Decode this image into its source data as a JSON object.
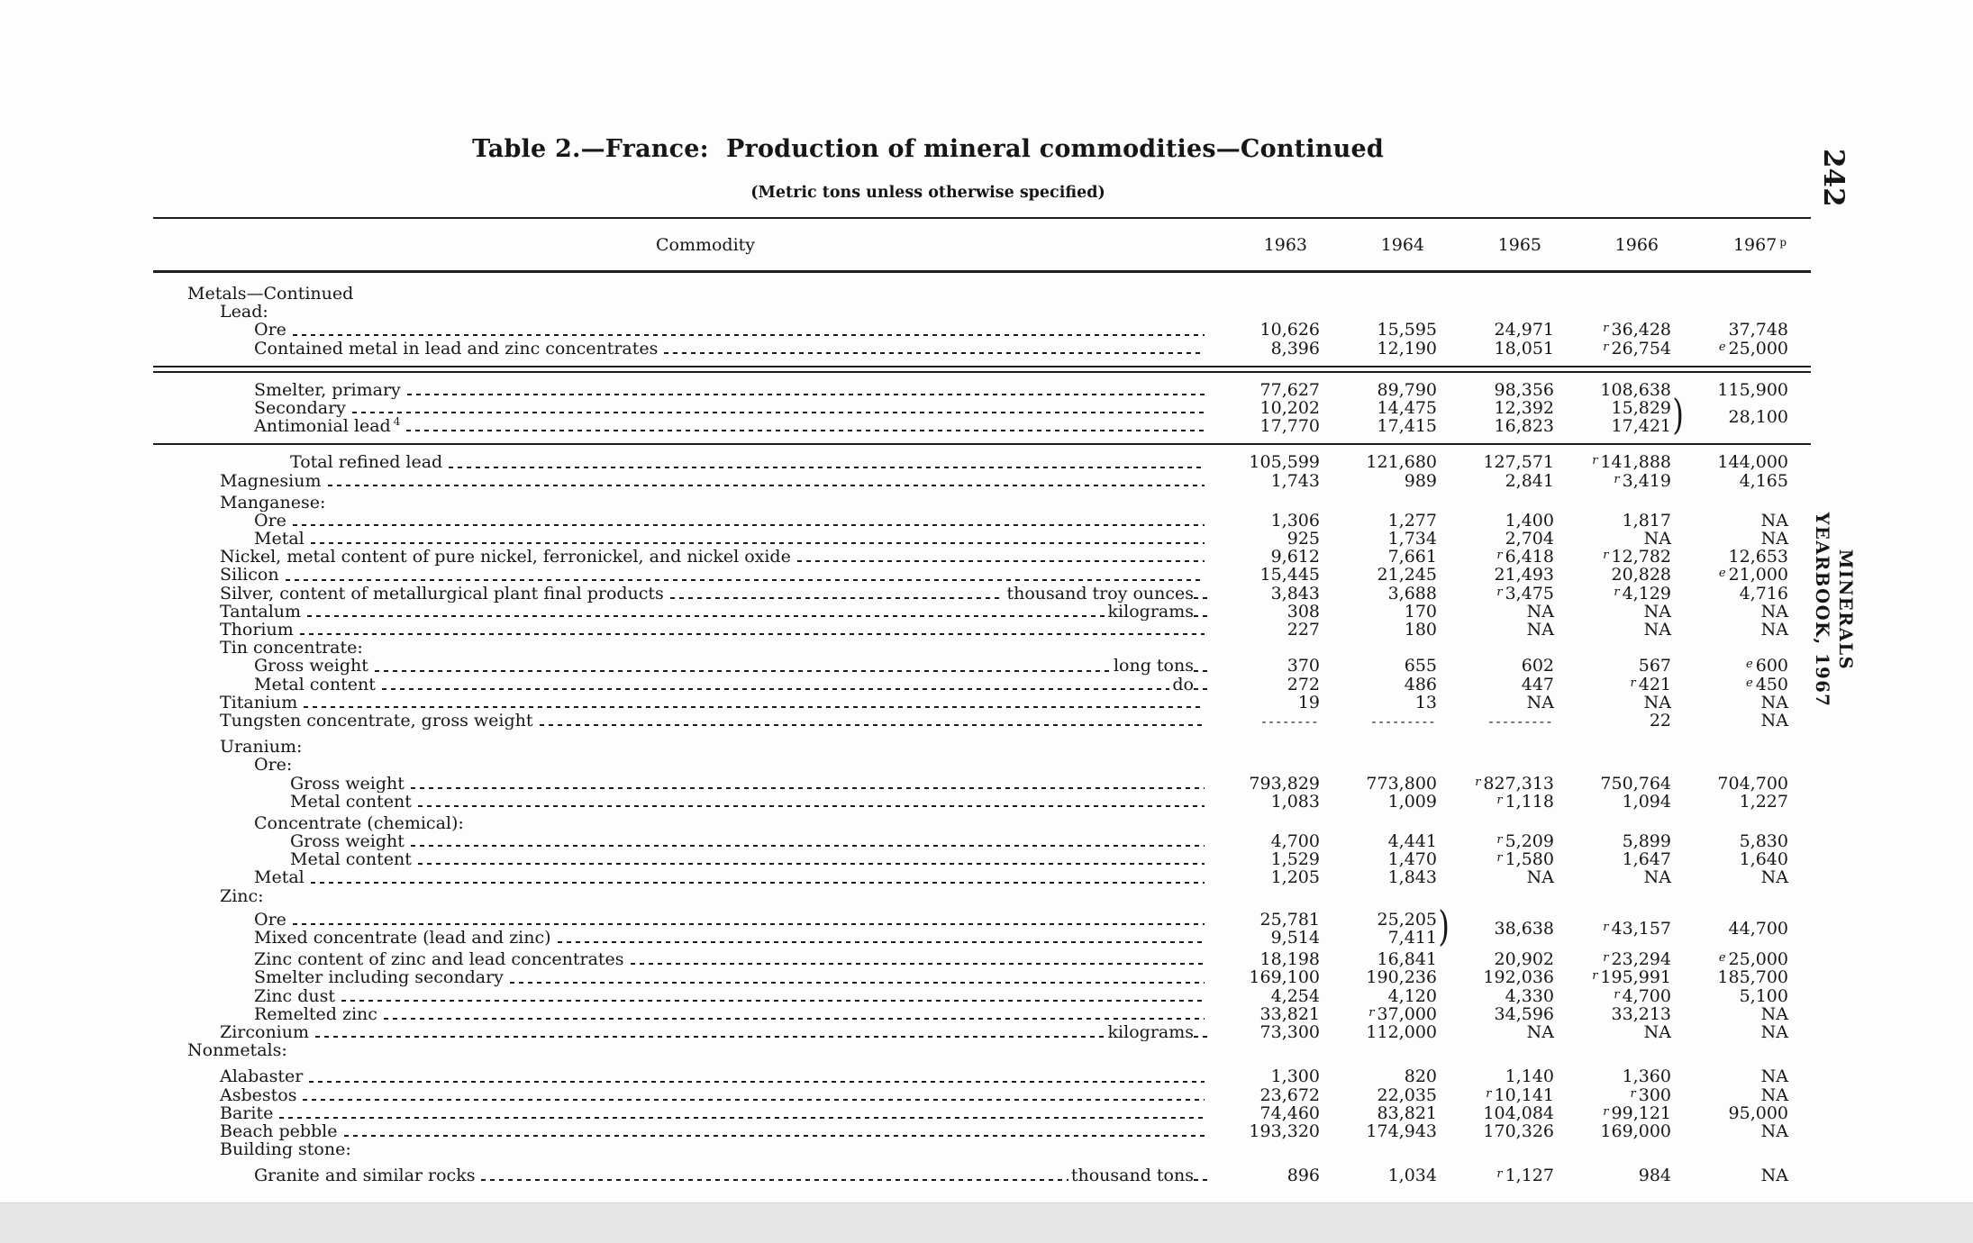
{
  "colors": {
    "ink": "#161616",
    "paper": "#fdfdfc",
    "scan_band": "#e6e6e4"
  },
  "page": {
    "number": "242",
    "running_head": "MINERALS YEARBOOK, 1967"
  },
  "title": "Table 2.—France:  Production of mineral commodities—Continued",
  "subtitle": "(Metric tons unless otherwise specified)",
  "table": {
    "commodity_header": "Commodity",
    "columns": [
      {
        "label": "1963"
      },
      {
        "label": "1964"
      },
      {
        "label": "1965"
      },
      {
        "label": "1966"
      },
      {
        "label": "1967",
        "sup": "p"
      }
    ],
    "rows": [
      {
        "label": "Metals—Continued",
        "indent": 0,
        "heading": true
      },
      {
        "label": "Lead:",
        "indent": 1,
        "heading": true
      },
      {
        "label": "Ore",
        "indent": 2,
        "cells": [
          {
            "v": "10,626"
          },
          {
            "v": "15,595"
          },
          {
            "v": "24,971"
          },
          {
            "s": "r",
            "v": "36,428"
          },
          {
            "v": "37,748"
          }
        ]
      },
      {
        "label": "Contained metal in lead and zinc concentrates",
        "indent": 2,
        "cells": [
          {
            "v": "8,396"
          },
          {
            "v": "12,190"
          },
          {
            "v": "18,051"
          },
          {
            "s": "r",
            "v": "26,754"
          },
          {
            "s": "e",
            "v": "25,000"
          }
        ]
      },
      {
        "type": "dblrule"
      },
      {
        "label": "Smelter, primary",
        "indent": 2,
        "cells": [
          {
            "v": "77,627"
          },
          {
            "v": "89,790"
          },
          {
            "v": "98,356"
          },
          {
            "v": "108,638"
          },
          {
            "v": "115,900"
          }
        ]
      },
      {
        "label": "Secondary",
        "indent": 2,
        "cells": [
          {
            "v": "10,202"
          },
          {
            "v": "14,475"
          },
          {
            "v": "12,392"
          },
          {
            "v": "15,829",
            "brace": true
          },
          {
            "v": "28,100",
            "shift": true
          }
        ]
      },
      {
        "label": "Antimonial lead",
        "foot": "4",
        "indent": 2,
        "cells": [
          {
            "v": "17,770"
          },
          {
            "v": "17,415"
          },
          {
            "v": "16,823"
          },
          {
            "v": "17,421"
          },
          null
        ]
      },
      {
        "type": "rule"
      },
      {
        "label": "Total refined lead",
        "indent": 3,
        "cells": [
          {
            "v": "105,599"
          },
          {
            "v": "121,680"
          },
          {
            "v": "127,571"
          },
          {
            "s": "r",
            "v": "141,888"
          },
          {
            "v": "144,000"
          }
        ]
      },
      {
        "label": "Magnesium",
        "indent": 1,
        "cells": [
          {
            "v": "1,743"
          },
          {
            "v": "989"
          },
          {
            "v": "2,841"
          },
          {
            "s": "r",
            "v": "3,419"
          },
          {
            "v": "4,165"
          }
        ]
      },
      {
        "label": "Manganese:",
        "indent": 1,
        "heading": true,
        "gapBefore": 4
      },
      {
        "label": "Ore",
        "indent": 2,
        "cells": [
          {
            "v": "1,306"
          },
          {
            "v": "1,277"
          },
          {
            "v": "1,400"
          },
          {
            "v": "1,817"
          },
          {
            "v": "NA"
          }
        ]
      },
      {
        "label": "Metal",
        "indent": 2,
        "cells": [
          {
            "v": "925"
          },
          {
            "v": "1,734"
          },
          {
            "v": "2,704"
          },
          {
            "v": "NA"
          },
          {
            "v": "NA"
          }
        ]
      },
      {
        "label": "Nickel, metal content of pure nickel, ferronickel, and nickel oxide",
        "indent": 1,
        "cells": [
          {
            "v": "9,612"
          },
          {
            "v": "7,661"
          },
          {
            "s": "r",
            "v": "6,418"
          },
          {
            "s": "r",
            "v": "12,782"
          },
          {
            "v": "12,653"
          }
        ]
      },
      {
        "label": "Silicon",
        "indent": 1,
        "cells": [
          {
            "v": "15,445"
          },
          {
            "v": "21,245"
          },
          {
            "v": "21,493"
          },
          {
            "v": "20,828"
          },
          {
            "s": "e",
            "v": "21,000"
          }
        ]
      },
      {
        "label": "Silver, content of metallurgical plant final products",
        "unit": "thousand troy ounces",
        "indent": 1,
        "cells": [
          {
            "v": "3,843"
          },
          {
            "v": "3,688"
          },
          {
            "s": "r",
            "v": "3,475"
          },
          {
            "s": "r",
            "v": "4,129"
          },
          {
            "v": "4,716"
          }
        ]
      },
      {
        "label": "Tantalum",
        "unit": "kilograms",
        "indent": 1,
        "cells": [
          {
            "v": "308"
          },
          {
            "v": "170"
          },
          {
            "v": "NA"
          },
          {
            "v": "NA"
          },
          {
            "v": "NA"
          }
        ]
      },
      {
        "label": "Thorium",
        "indent": 1,
        "cells": [
          {
            "v": "227"
          },
          {
            "v": "180"
          },
          {
            "v": "NA"
          },
          {
            "v": "NA"
          },
          {
            "v": "NA"
          }
        ]
      },
      {
        "label": "Tin concentrate:",
        "indent": 1,
        "heading": true
      },
      {
        "label": "Gross weight",
        "unit": "long tons",
        "indent": 2,
        "cells": [
          {
            "v": "370"
          },
          {
            "v": "655"
          },
          {
            "v": "602"
          },
          {
            "v": "567"
          },
          {
            "s": "e",
            "v": "600"
          }
        ]
      },
      {
        "label": "Metal content",
        "unit": "do",
        "indent": 2,
        "cells": [
          {
            "v": "272"
          },
          {
            "v": "486"
          },
          {
            "v": "447"
          },
          {
            "s": "r",
            "v": "421"
          },
          {
            "s": "e",
            "v": "450"
          }
        ]
      },
      {
        "label": "Titanium",
        "indent": 1,
        "cells": [
          {
            "v": "19"
          },
          {
            "v": "13"
          },
          {
            "v": "NA"
          },
          {
            "v": "NA"
          },
          {
            "v": "NA"
          }
        ]
      },
      {
        "label": "Tungsten concentrate, gross weight",
        "indent": 1,
        "cells": [
          {
            "v": "--------",
            "dash": true
          },
          {
            "v": "---------",
            "dash": true
          },
          {
            "v": "---------",
            "dash": true
          },
          {
            "v": "22"
          },
          {
            "v": "NA"
          }
        ]
      },
      {
        "label": "Uranium:",
        "indent": 1,
        "heading": true,
        "gapBefore": 9
      },
      {
        "label": "Ore:",
        "indent": 2,
        "heading": true
      },
      {
        "label": "Gross weight",
        "indent": 3,
        "cells": [
          {
            "v": "793,829"
          },
          {
            "v": "773,800"
          },
          {
            "s": "r",
            "v": "827,313"
          },
          {
            "v": "750,764"
          },
          {
            "v": "704,700"
          }
        ]
      },
      {
        "label": "Metal content",
        "indent": 3,
        "cells": [
          {
            "v": "1,083"
          },
          {
            "v": "1,009"
          },
          {
            "s": "r",
            "v": "1,118"
          },
          {
            "v": "1,094"
          },
          {
            "v": "1,227"
          }
        ]
      },
      {
        "label": "Concentrate (chemical):",
        "indent": 2,
        "heading": true,
        "gapBefore": 4
      },
      {
        "label": "Gross weight",
        "indent": 3,
        "cells": [
          {
            "v": "4,700"
          },
          {
            "v": "4,441"
          },
          {
            "s": "r",
            "v": "5,209"
          },
          {
            "v": "5,899"
          },
          {
            "v": "5,830"
          }
        ]
      },
      {
        "label": "Metal content",
        "indent": 3,
        "cells": [
          {
            "v": "1,529"
          },
          {
            "v": "1,470"
          },
          {
            "s": "r",
            "v": "1,580"
          },
          {
            "v": "1,647"
          },
          {
            "v": "1,640"
          }
        ]
      },
      {
        "label": "Metal",
        "indent": 2,
        "cells": [
          {
            "v": "1,205"
          },
          {
            "v": "1,843"
          },
          {
            "v": "NA"
          },
          {
            "v": "NA"
          },
          {
            "v": "NA"
          }
        ]
      },
      {
        "label": "Zinc:",
        "indent": 1,
        "heading": true
      },
      {
        "label": "Ore",
        "indent": 2,
        "gapBefore": 6,
        "cells": [
          {
            "v": "25,781"
          },
          {
            "v": "25,205",
            "brace": true
          },
          {
            "v": "38,638",
            "shift": true
          },
          {
            "s": "r",
            "v": "43,157",
            "shift": true
          },
          {
            "v": "44,700",
            "shift": true
          }
        ]
      },
      {
        "label": "Mixed concentrate (lead and zinc)",
        "indent": 2,
        "cells": [
          {
            "v": "9,514"
          },
          {
            "v": "7,411"
          },
          null,
          null,
          null
        ]
      },
      {
        "label": "Zinc content of zinc and lead concentrates",
        "indent": 2,
        "gapBefore": 4,
        "cells": [
          {
            "v": "18,198"
          },
          {
            "v": "16,841"
          },
          {
            "v": "20,902"
          },
          {
            "s": "r",
            "v": "23,294"
          },
          {
            "s": "e",
            "v": "25,000"
          }
        ]
      },
      {
        "label": "Smelter including secondary",
        "indent": 2,
        "cells": [
          {
            "v": "169,100"
          },
          {
            "v": "190,236"
          },
          {
            "v": "192,036"
          },
          {
            "s": "r",
            "v": "195,991"
          },
          {
            "v": "185,700"
          }
        ]
      },
      {
        "label": "Zinc dust",
        "indent": 2,
        "cells": [
          {
            "v": "4,254"
          },
          {
            "v": "4,120"
          },
          {
            "v": "4,330"
          },
          {
            "s": "r",
            "v": "4,700"
          },
          {
            "v": "5,100"
          }
        ]
      },
      {
        "label": "Remelted zinc",
        "indent": 2,
        "cells": [
          {
            "v": "33,821"
          },
          {
            "s": "r",
            "v": "37,000"
          },
          {
            "v": "34,596"
          },
          {
            "v": "33,213"
          },
          {
            "v": "NA"
          }
        ]
      },
      {
        "label": "Zirconium",
        "unit": "kilograms",
        "indent": 1,
        "cells": [
          {
            "v": "73,300"
          },
          {
            "v": "112,000"
          },
          {
            "v": "NA"
          },
          {
            "v": "NA"
          },
          {
            "v": "NA"
          }
        ]
      },
      {
        "label": "Nonmetals:",
        "indent": 0,
        "heading": true
      },
      {
        "label": "Alabaster",
        "indent": 1,
        "gapBefore": 9,
        "cells": [
          {
            "v": "1,300"
          },
          {
            "v": "820"
          },
          {
            "v": "1,140"
          },
          {
            "v": "1,360"
          },
          {
            "v": "NA"
          }
        ]
      },
      {
        "label": "Asbestos",
        "indent": 1,
        "cells": [
          {
            "v": "23,672"
          },
          {
            "v": "22,035"
          },
          {
            "s": "r",
            "v": "10,141"
          },
          {
            "s": "r",
            "v": "300"
          },
          {
            "v": "NA"
          }
        ]
      },
      {
        "label": "Barite",
        "indent": 1,
        "cells": [
          {
            "v": "74,460"
          },
          {
            "v": "83,821"
          },
          {
            "v": "104,084"
          },
          {
            "s": "r",
            "v": "99,121"
          },
          {
            "v": "95,000"
          }
        ]
      },
      {
        "label": "Beach pebble",
        "indent": 1,
        "cells": [
          {
            "v": "193,320"
          },
          {
            "v": "174,943"
          },
          {
            "v": "170,326"
          },
          {
            "v": "169,000"
          },
          {
            "v": "NA"
          }
        ]
      },
      {
        "label": "Building stone:",
        "indent": 1,
        "heading": true
      },
      {
        "label": "Granite and similar rocks",
        "unit": "thousand tons",
        "indent": 2,
        "gapBefore": 9,
        "cells": [
          {
            "v": "896"
          },
          {
            "v": "1,034"
          },
          {
            "s": "r",
            "v": "1,127"
          },
          {
            "v": "984"
          },
          {
            "v": "NA"
          }
        ]
      }
    ]
  }
}
